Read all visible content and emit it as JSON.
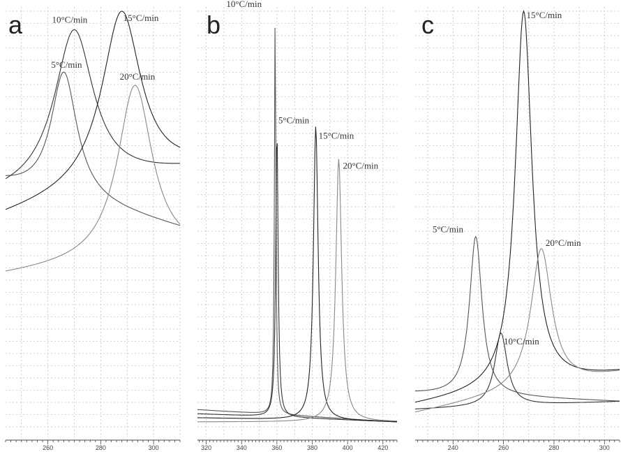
{
  "figure": {
    "panels": [
      "a",
      "b",
      "c"
    ]
  },
  "chart_data": [
    {
      "panel": "a",
      "type": "line",
      "xlim": [
        244,
        310
      ],
      "ylim": [
        0,
        1
      ],
      "x_ticks": [
        260,
        280,
        300
      ],
      "grid": true,
      "series": [
        {
          "name": "5°C/min",
          "peak_x": 266,
          "peak_y": 0.77,
          "width": 6,
          "baseline_left": 0.35,
          "baseline_right": 0.18,
          "label": "5°C/min"
        },
        {
          "name": "10°C/min",
          "peak_x": 270,
          "peak_y": 0.93,
          "width": 9,
          "baseline_left": 0.3,
          "baseline_right": 0.4,
          "label": "10°C/min"
        },
        {
          "name": "15°C/min",
          "peak_x": 288,
          "peak_y": 1.0,
          "width": 9,
          "baseline_left": 0.22,
          "baseline_right": 0.4,
          "label": "15°C/min"
        },
        {
          "name": "20°C/min",
          "peak_x": 293,
          "peak_y": 0.72,
          "width": 8,
          "baseline_left": 0.0,
          "baseline_right": 0.08,
          "label": "20°C/min"
        }
      ]
    },
    {
      "panel": "b",
      "type": "line",
      "xlim": [
        315,
        428
      ],
      "ylim": [
        0,
        1
      ],
      "x_ticks": [
        320,
        340,
        360,
        380,
        400,
        420
      ],
      "grid": true,
      "series": [
        {
          "name": "10°C/min",
          "peak_x": 359,
          "peak_y": 1.0,
          "width": 0.5,
          "baseline_left": 0.03,
          "baseline_right": 0.0,
          "label": "10°C/min"
        },
        {
          "name": "5°C/min",
          "peak_x": 360,
          "peak_y": 0.72,
          "width": 0.8,
          "baseline_left": 0.02,
          "baseline_right": 0.0,
          "label": "5°C/min"
        },
        {
          "name": "15°C/min",
          "peak_x": 382,
          "peak_y": 0.72,
          "width": 1.6,
          "baseline_left": 0.01,
          "baseline_right": 0.0,
          "label": "15°C/min"
        },
        {
          "name": "20°C/min",
          "peak_x": 395,
          "peak_y": 0.64,
          "width": 2.0,
          "baseline_left": 0.0,
          "baseline_right": 0.0,
          "label": "20°C/min"
        }
      ]
    },
    {
      "panel": "c",
      "type": "line",
      "xlim": [
        225,
        306
      ],
      "ylim": [
        0,
        1
      ],
      "x_ticks": [
        240,
        260,
        280,
        300
      ],
      "grid": true,
      "series": [
        {
          "name": "5°C/min",
          "peak_x": 249,
          "peak_y": 0.44,
          "width": 3,
          "baseline_left": 0.05,
          "baseline_right": 0.03,
          "label": "5°C/min"
        },
        {
          "name": "10°C/min",
          "peak_x": 259,
          "peak_y": 0.2,
          "width": 3,
          "baseline_left": 0.01,
          "baseline_right": 0.03,
          "label": "10°C/min"
        },
        {
          "name": "15°C/min",
          "peak_x": 268,
          "peak_y": 1.0,
          "width": 4,
          "baseline_left": 0.02,
          "baseline_right": 0.1,
          "label": "15°C/min"
        },
        {
          "name": "20°C/min",
          "peak_x": 275,
          "peak_y": 0.41,
          "width": 5,
          "baseline_left": 0.0,
          "baseline_right": 0.1,
          "label": "20°C/min"
        }
      ]
    }
  ]
}
